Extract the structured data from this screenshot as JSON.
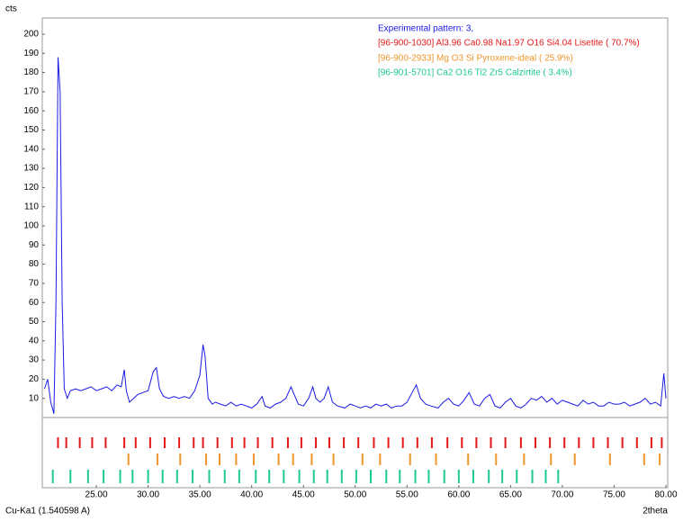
{
  "chart_data": {
    "type": "line",
    "y_label": "cts",
    "x_label": "2theta",
    "wavelength_label": "Cu-Ka1 (1.540598 A)",
    "xlim": [
      20,
      80
    ],
    "ylim": [
      0,
      205
    ],
    "xticks": [
      {
        "value": 25,
        "label": "25.00"
      },
      {
        "value": 30,
        "label": "30.00"
      },
      {
        "value": 35,
        "label": "35.00"
      },
      {
        "value": 40,
        "label": "40.00"
      },
      {
        "value": 45,
        "label": "45.00"
      },
      {
        "value": 50,
        "label": "50.00"
      },
      {
        "value": 55,
        "label": "55.00"
      },
      {
        "value": 60,
        "label": "60.00"
      },
      {
        "value": 65,
        "label": "65.00"
      },
      {
        "value": 70,
        "label": "70.00"
      },
      {
        "value": 75,
        "label": "75.00"
      },
      {
        "value": 80,
        "label": "80.00"
      }
    ],
    "yticks": [
      10,
      20,
      30,
      40,
      50,
      60,
      70,
      80,
      90,
      100,
      110,
      120,
      130,
      140,
      150,
      160,
      170,
      180,
      190,
      200
    ],
    "series": [
      {
        "name": "Experimental pattern: 3,",
        "color": "#1a1ae6",
        "x": [
          20.0,
          20.3,
          20.6,
          20.9,
          21.1,
          21.3,
          21.5,
          21.7,
          21.9,
          22.2,
          22.5,
          23,
          23.5,
          24,
          24.5,
          25,
          25.5,
          26,
          26.5,
          27,
          27.4,
          27.7,
          27.9,
          28.2,
          28.6,
          29,
          29.5,
          30,
          30.5,
          30.8,
          31.1,
          31.5,
          32,
          32.5,
          33,
          33.5,
          34,
          34.5,
          35,
          35.3,
          35.5,
          35.8,
          36.2,
          36.5,
          37,
          37.5,
          38,
          38.5,
          39,
          39.5,
          40,
          40.5,
          41,
          41.3,
          41.8,
          42.3,
          42.8,
          43.3,
          43.8,
          44.1,
          44.5,
          45,
          45.5,
          45.9,
          46.2,
          46.6,
          47,
          47.4,
          47.8,
          48.3,
          49,
          49.5,
          50,
          50.5,
          51,
          51.5,
          52,
          52.5,
          53,
          53.5,
          54,
          54.5,
          55,
          55.5,
          55.9,
          56.3,
          56.8,
          57.3,
          58,
          58.5,
          59,
          59.5,
          60,
          60.5,
          61,
          61.5,
          62,
          62.5,
          63,
          63.5,
          64,
          64.5,
          65,
          65.5,
          66,
          66.5,
          67,
          67.5,
          68,
          68.5,
          69,
          69.5,
          70,
          70.5,
          71,
          71.5,
          72,
          72.5,
          73,
          73.5,
          74,
          74.5,
          75,
          75.5,
          76,
          76.5,
          77,
          77.5,
          78,
          78.5,
          79,
          79.5,
          79.8,
          80
        ],
        "values": [
          15,
          20,
          8,
          2,
          60,
          188,
          170,
          60,
          15,
          10,
          14,
          15,
          14,
          15,
          16,
          14,
          15,
          16,
          14,
          17,
          16,
          25,
          14,
          8,
          10,
          12,
          13,
          14,
          24,
          26,
          15,
          11,
          10,
          11,
          10,
          11,
          10,
          14,
          22,
          38,
          32,
          10,
          7,
          8,
          7,
          6,
          8,
          6,
          7,
          6,
          5,
          7,
          11,
          6,
          5,
          7,
          8,
          10,
          16,
          12,
          7,
          6,
          10,
          16,
          10,
          8,
          10,
          16,
          8,
          6,
          5,
          7,
          6,
          5,
          6,
          5,
          7,
          6,
          7,
          5,
          6,
          6,
          8,
          13,
          17,
          10,
          7,
          6,
          5,
          8,
          10,
          7,
          6,
          9,
          13,
          7,
          6,
          10,
          12,
          6,
          5,
          8,
          10,
          6,
          5,
          7,
          10,
          9,
          11,
          8,
          10,
          7,
          9,
          8,
          7,
          6,
          9,
          7,
          8,
          6,
          6,
          8,
          7,
          7,
          8,
          6,
          7,
          8,
          10,
          7,
          8,
          6,
          23,
          10
        ]
      }
    ],
    "phases": [
      {
        "name": "[96-900-1030] Al3.96 Ca0.98 Na1.97 O16 Si4.04  Lisetite ( 70.7%)",
        "color": "#e61919",
        "positions": [
          21.3,
          22.1,
          23.4,
          24.6,
          25.9,
          27.7,
          28.8,
          30.2,
          31.6,
          33.0,
          34.4,
          35.3,
          36.7,
          38.1,
          39.3,
          40.6,
          42.0,
          43.5,
          44.8,
          46.2,
          47.5,
          48.9,
          50.3,
          51.8,
          53.2,
          54.6,
          56.0,
          57.4,
          58.9,
          60.3,
          61.7,
          63.1,
          64.5,
          66.0,
          67.4,
          68.8,
          70.2,
          71.6,
          73.0,
          74.4,
          75.8,
          77.2,
          78.6,
          79.6
        ]
      },
      {
        "name": "[96-900-2933] Mg O3 Si  Pyroxene-ideal ( 25.9%)",
        "color": "#f0962d",
        "positions": [
          28.1,
          30.9,
          33.1,
          35.6,
          36.9,
          38.5,
          40.2,
          42.6,
          44.0,
          45.8,
          47.9,
          50.7,
          52.4,
          55.3,
          57.8,
          60.9,
          63.6,
          66.3,
          68.9,
          71.2,
          74.6,
          77.9,
          79.4
        ]
      },
      {
        "name": "[96-901-5701] Ca2 O16 Ti2 Zr5  Calzirtite ( 3.4%)",
        "color": "#1ec896",
        "positions": [
          20.8,
          22.5,
          24.2,
          25.7,
          27.3,
          28.5,
          30.0,
          31.4,
          32.8,
          34.3,
          35.9,
          37.4,
          38.8,
          40.4,
          41.7,
          43.1,
          44.6,
          46.0,
          47.3,
          48.7,
          50.1,
          51.5,
          53.0,
          54.3,
          55.8,
          57.1,
          58.6,
          60.0,
          61.4,
          62.9,
          64.2,
          65.6,
          67.1,
          68.4,
          69.6
        ]
      }
    ]
  }
}
